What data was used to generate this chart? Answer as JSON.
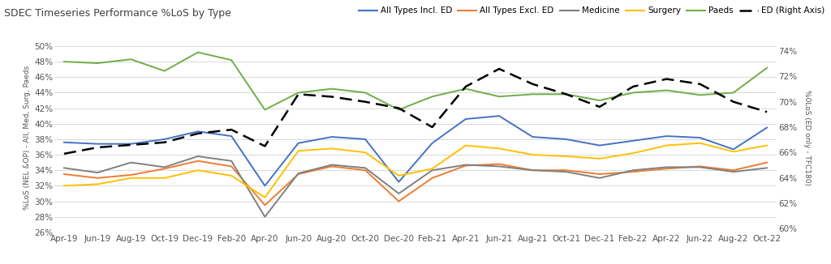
{
  "title": "SDEC Timeseries Performance %LoS by Type",
  "ylabel_left": "%LoS (NEL &OP) - All, Med, Surg, Paeds",
  "ylabel_right": "%0LoS (ED only - TFC180)",
  "xlabels": [
    "Apr-19",
    "Jun-19",
    "Aug-19",
    "Oct-19",
    "Dec-19",
    "Feb-20",
    "Apr-20",
    "Jun-20",
    "Aug-20",
    "Oct-20",
    "Dec-20",
    "Feb-21",
    "Apr-21",
    "Jun-21",
    "Aug-21",
    "Oct-21",
    "Dec-21",
    "Feb-22",
    "Apr-22",
    "Jun-22",
    "Aug-22",
    "Oct-22"
  ],
  "ylim_left": [
    0.26,
    0.505
  ],
  "ylim_right": [
    0.597,
    0.747
  ],
  "yticks_left": [
    0.26,
    0.28,
    0.3,
    0.32,
    0.34,
    0.36,
    0.38,
    0.4,
    0.42,
    0.44,
    0.46,
    0.48,
    0.5
  ],
  "yticks_right": [
    0.6,
    0.62,
    0.64,
    0.66,
    0.68,
    0.7,
    0.72,
    0.74
  ],
  "series": {
    "all_incl_ed": {
      "label": "All Types Incl. ED",
      "color": "#4472C4",
      "values": [
        0.376,
        0.374,
        0.374,
        0.38,
        0.39,
        0.384,
        0.32,
        0.375,
        0.383,
        0.38,
        0.325,
        0.375,
        0.406,
        0.41,
        0.383,
        0.38,
        0.372,
        0.378,
        0.384,
        0.382,
        0.367,
        0.395
      ]
    },
    "all_excl_ed": {
      "label": "All Types Excl. ED",
      "color": "#ED7D31",
      "values": [
        0.335,
        0.33,
        0.334,
        0.342,
        0.352,
        0.345,
        0.295,
        0.335,
        0.345,
        0.34,
        0.3,
        0.33,
        0.346,
        0.348,
        0.34,
        0.34,
        0.335,
        0.338,
        0.342,
        0.345,
        0.34,
        0.35
      ]
    },
    "medicine": {
      "label": "Medicine",
      "color": "#808080",
      "values": [
        0.343,
        0.337,
        0.35,
        0.344,
        0.358,
        0.352,
        0.28,
        0.336,
        0.347,
        0.343,
        0.31,
        0.34,
        0.347,
        0.345,
        0.34,
        0.338,
        0.33,
        0.34,
        0.344,
        0.344,
        0.338,
        0.343
      ]
    },
    "surgery": {
      "label": "Surgery",
      "color": "#FFC000",
      "values": [
        0.32,
        0.322,
        0.33,
        0.33,
        0.34,
        0.333,
        0.305,
        0.365,
        0.368,
        0.363,
        0.333,
        0.342,
        0.372,
        0.368,
        0.36,
        0.358,
        0.355,
        0.362,
        0.372,
        0.375,
        0.364,
        0.372
      ]
    },
    "paeds": {
      "label": "Paeds",
      "color": "#70AD47",
      "values": [
        0.48,
        0.478,
        0.483,
        0.468,
        0.492,
        0.482,
        0.418,
        0.44,
        0.445,
        0.44,
        0.418,
        0.435,
        0.445,
        0.435,
        0.438,
        0.438,
        0.43,
        0.44,
        0.443,
        0.437,
        0.44,
        0.472
      ]
    },
    "ed_right": {
      "label": "ED (Right Axis)",
      "color": "#000000",
      "values": [
        0.659,
        0.664,
        0.666,
        0.668,
        0.675,
        0.678,
        0.665,
        0.706,
        0.704,
        0.7,
        0.695,
        0.68,
        0.712,
        0.726,
        0.714,
        0.706,
        0.696,
        0.712,
        0.718,
        0.714,
        0.7,
        0.692
      ]
    }
  },
  "background_color": "#FFFFFF",
  "grid_color": "#D9D9D9",
  "title_fontsize": 9,
  "tick_fontsize": 7.5,
  "legend_fontsize": 7.5
}
